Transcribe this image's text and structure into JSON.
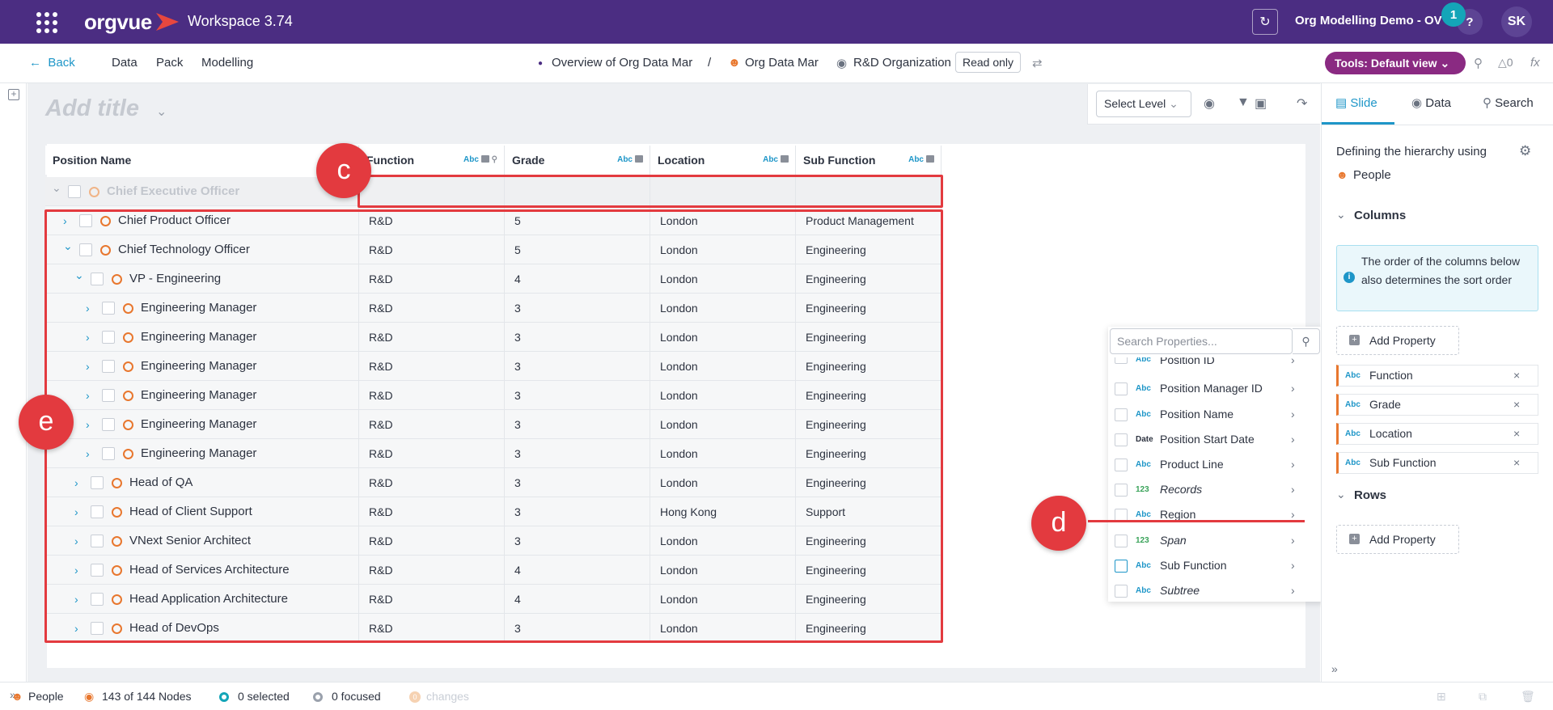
{
  "header": {
    "logo": "orgvue",
    "workspace": "Workspace 3.74",
    "project": "Org Modelling Demo - OV",
    "notifications": "1",
    "help": "?",
    "user_initials": "SK"
  },
  "nav": {
    "back": "Back",
    "items": [
      "Data",
      "Pack",
      "Modelling"
    ],
    "breadcrumb": [
      "Overview of Org Data Mar",
      "/",
      "Org Data Mar",
      "R&D Organization"
    ],
    "read_only": "Read only",
    "tools": "Tools: Default view",
    "count": "0"
  },
  "canvas": {
    "title_placeholder": "Add title",
    "select_level": "Select Level"
  },
  "table": {
    "columns": [
      {
        "label": "Position Name",
        "type": "Abc"
      },
      {
        "label": "Function",
        "type": "Abc"
      },
      {
        "label": "Grade",
        "type": "Abc"
      },
      {
        "label": "Location",
        "type": "Abc"
      },
      {
        "label": "Sub Function",
        "type": "Abc"
      }
    ],
    "rows": [
      {
        "name": "Chief Executive Officer",
        "level": 0,
        "expanded": true,
        "function": "",
        "grade": "",
        "location": "",
        "sub_function": "",
        "faded": true
      },
      {
        "name": "Chief Product Officer",
        "level": 1,
        "expanded": false,
        "function": "R&D",
        "grade": "5",
        "location": "London",
        "sub_function": "Product Management"
      },
      {
        "name": "Chief Technology Officer",
        "level": 1,
        "expanded": true,
        "function": "R&D",
        "grade": "5",
        "location": "London",
        "sub_function": "Engineering"
      },
      {
        "name": "VP - Engineering",
        "level": 2,
        "expanded": true,
        "function": "R&D",
        "grade": "4",
        "location": "London",
        "sub_function": "Engineering"
      },
      {
        "name": "Engineering Manager",
        "level": 3,
        "expanded": false,
        "function": "R&D",
        "grade": "3",
        "location": "London",
        "sub_function": "Engineering"
      },
      {
        "name": "Engineering Manager",
        "level": 3,
        "expanded": false,
        "function": "R&D",
        "grade": "3",
        "location": "London",
        "sub_function": "Engineering"
      },
      {
        "name": "Engineering Manager",
        "level": 3,
        "expanded": false,
        "function": "R&D",
        "grade": "3",
        "location": "London",
        "sub_function": "Engineering"
      },
      {
        "name": "Engineering Manager",
        "level": 3,
        "expanded": false,
        "function": "R&D",
        "grade": "3",
        "location": "London",
        "sub_function": "Engineering"
      },
      {
        "name": "Engineering Manager",
        "level": 3,
        "expanded": false,
        "function": "R&D",
        "grade": "3",
        "location": "London",
        "sub_function": "Engineering"
      },
      {
        "name": "Engineering Manager",
        "level": 3,
        "expanded": false,
        "function": "R&D",
        "grade": "3",
        "location": "London",
        "sub_function": "Engineering"
      },
      {
        "name": "Head of QA",
        "level": 2,
        "expanded": false,
        "function": "R&D",
        "grade": "3",
        "location": "London",
        "sub_function": "Engineering"
      },
      {
        "name": "Head of Client Support",
        "level": 2,
        "expanded": false,
        "function": "R&D",
        "grade": "3",
        "location": "Hong Kong",
        "sub_function": "Support"
      },
      {
        "name": "VNext Senior Architect",
        "level": 2,
        "expanded": false,
        "function": "R&D",
        "grade": "3",
        "location": "London",
        "sub_function": "Engineering"
      },
      {
        "name": "Head of Services Architecture",
        "level": 2,
        "expanded": false,
        "function": "R&D",
        "grade": "4",
        "location": "London",
        "sub_function": "Engineering"
      },
      {
        "name": "Head Application Architecture",
        "level": 2,
        "expanded": false,
        "function": "R&D",
        "grade": "4",
        "location": "London",
        "sub_function": "Engineering"
      },
      {
        "name": "Head of DevOps",
        "level": 2,
        "expanded": false,
        "function": "R&D",
        "grade": "3",
        "location": "London",
        "sub_function": "Engineering"
      }
    ]
  },
  "annotations": {
    "c": "c",
    "d": "d",
    "e": "e"
  },
  "property_picker": {
    "placeholder": "Search Properties...",
    "items": [
      {
        "type": "Abc",
        "label": "Position ID"
      },
      {
        "type": "Abc",
        "label": "Position Manager ID"
      },
      {
        "type": "Abc",
        "label": "Position Name"
      },
      {
        "type": "Date",
        "label": "Position Start Date"
      },
      {
        "type": "Abc",
        "label": "Product Line"
      },
      {
        "type": "123",
        "label": "Records",
        "italic": true
      },
      {
        "type": "Abc",
        "label": "Region"
      },
      {
        "type": "123",
        "label": "Span",
        "italic": true
      },
      {
        "type": "Abc",
        "label": "Sub Function"
      },
      {
        "type": "Abc",
        "label": "Subtree",
        "italic": true
      }
    ]
  },
  "side_panel": {
    "tabs": [
      "Slide",
      "Data",
      "Search"
    ],
    "hierarchy_label": "Defining the hierarchy using",
    "hierarchy_value": "People",
    "columns_label": "Columns",
    "info": "The order of the columns below also determines the sort order",
    "add_property": "Add Property",
    "column_props": [
      {
        "type": "Abc",
        "label": "Function"
      },
      {
        "type": "Abc",
        "label": "Grade"
      },
      {
        "type": "Abc",
        "label": "Location"
      },
      {
        "type": "Abc",
        "label": "Sub Function"
      }
    ],
    "rows_label": "Rows"
  },
  "status": {
    "dataset": "People",
    "nodes": "143 of 144 Nodes",
    "selected": "0 selected",
    "focused": "0 focused",
    "changes": "changes",
    "changes_count": "0"
  },
  "colors": {
    "brand": "#4b2d82",
    "accent": "#1e96c8",
    "node": "#e8772e",
    "annotation": "#e33a3f",
    "tools": "#8a2a82"
  }
}
